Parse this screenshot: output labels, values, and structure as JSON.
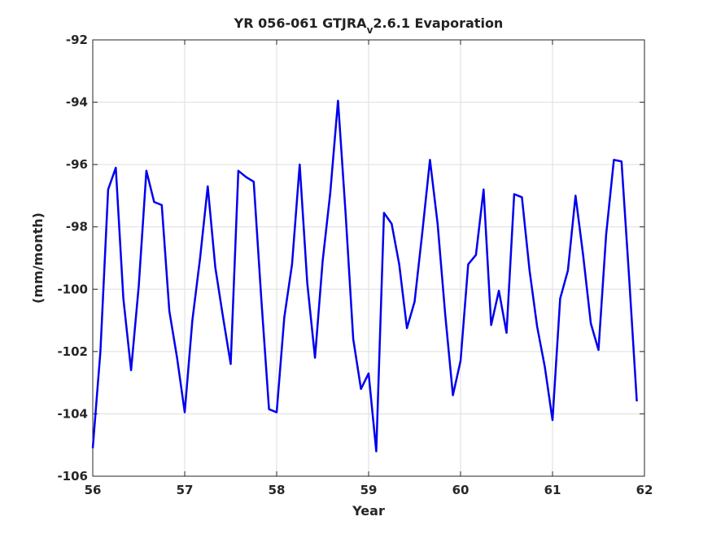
{
  "chart_data": {
    "type": "line",
    "title": {
      "main": "YR 056-061 GTJRA",
      "subscript": "v",
      "rest": "2.6.1 Evaporation"
    },
    "xlabel": "Year",
    "ylabel": "(mm/month)",
    "xlim": [
      56,
      62
    ],
    "ylim": [
      -106,
      -92
    ],
    "xticks": [
      56,
      57,
      58,
      59,
      60,
      61,
      62
    ],
    "yticks": [
      -92,
      -94,
      -96,
      -98,
      -100,
      -102,
      -104,
      -106
    ],
    "grid": true,
    "line_color": "#0000ee",
    "x": [
      56.0,
      56.083,
      56.167,
      56.25,
      56.333,
      56.417,
      56.5,
      56.583,
      56.667,
      56.75,
      56.833,
      56.917,
      57.0,
      57.083,
      57.167,
      57.25,
      57.333,
      57.417,
      57.5,
      57.583,
      57.667,
      57.75,
      57.833,
      57.917,
      58.0,
      58.083,
      58.167,
      58.25,
      58.333,
      58.417,
      58.5,
      58.583,
      58.667,
      58.75,
      58.833,
      58.917,
      59.0,
      59.083,
      59.167,
      59.25,
      59.333,
      59.417,
      59.5,
      59.583,
      59.667,
      59.75,
      59.833,
      59.917,
      60.0,
      60.083,
      60.167,
      60.25,
      60.333,
      60.417,
      60.5,
      60.583,
      60.667,
      60.75,
      60.833,
      60.917,
      61.0,
      61.083,
      61.167,
      61.25,
      61.333,
      61.417,
      61.5,
      61.583,
      61.667,
      61.75,
      61.833,
      61.917
    ],
    "y": [
      -105.1,
      -102.0,
      -96.8,
      -96.1,
      -100.3,
      -102.6,
      -99.9,
      -96.2,
      -97.2,
      -97.3,
      -100.7,
      -102.2,
      -103.95,
      -101.0,
      -99.0,
      -96.7,
      -99.3,
      -100.9,
      -102.4,
      -96.2,
      -96.4,
      -96.55,
      -100.3,
      -103.85,
      -103.95,
      -100.9,
      -99.2,
      -96.0,
      -99.8,
      -102.2,
      -99.1,
      -96.9,
      -93.95,
      -97.6,
      -101.6,
      -103.2,
      -102.7,
      -105.2,
      -97.55,
      -97.9,
      -99.2,
      -101.25,
      -100.4,
      -98.2,
      -95.85,
      -97.9,
      -100.8,
      -103.4,
      -102.3,
      -99.2,
      -98.9,
      -96.8,
      -101.15,
      -100.05,
      -101.4,
      -96.95,
      -97.05,
      -99.4,
      -101.2,
      -102.5,
      -104.2,
      -100.3,
      -99.4,
      -97.0,
      -98.9,
      -101.1,
      -101.95,
      -98.25,
      -95.85,
      -95.9,
      -99.6,
      -103.6
    ]
  }
}
